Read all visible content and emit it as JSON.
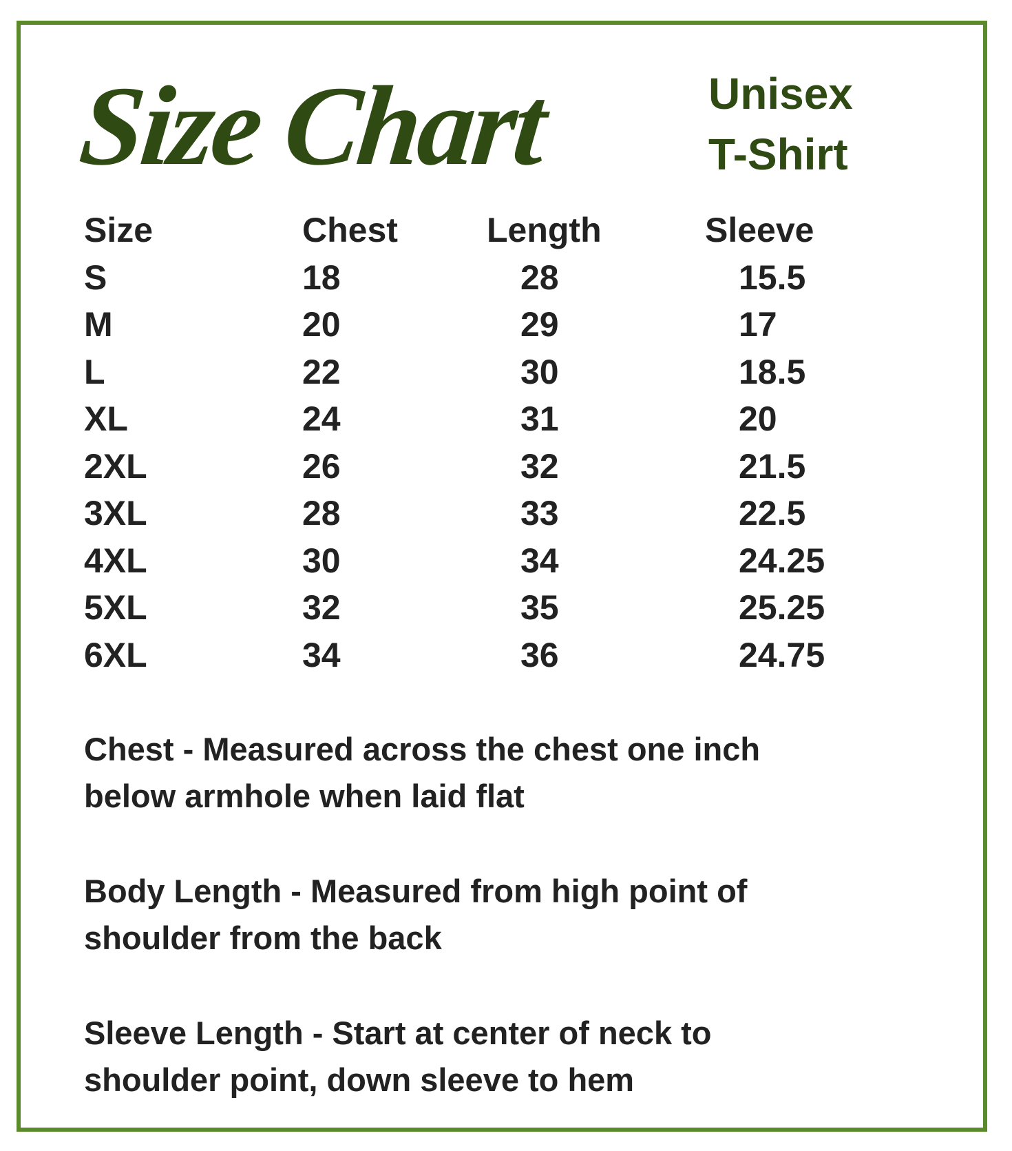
{
  "title": "Size Chart",
  "subtitle": [
    "Unisex",
    "T-Shirt"
  ],
  "colors": {
    "border": "#5b8a2b",
    "title": "#2f4a12",
    "text": "#222222"
  },
  "table": {
    "headers": [
      "Size",
      "Chest",
      "Length",
      "Sleeve"
    ],
    "rows": [
      [
        "S",
        "18",
        "28",
        "15.5"
      ],
      [
        "M",
        "20",
        "29",
        "17"
      ],
      [
        "L",
        "22",
        "30",
        "18.5"
      ],
      [
        "XL",
        "24",
        "31",
        "20"
      ],
      [
        "2XL",
        "26",
        "32",
        "21.5"
      ],
      [
        "3XL",
        "28",
        "33",
        "22.5"
      ],
      [
        "4XL",
        "30",
        "34",
        "24.25"
      ],
      [
        "5XL",
        "32",
        "35",
        "25.25"
      ],
      [
        "6XL",
        "34",
        "36",
        "24.75"
      ]
    ]
  },
  "notes": [
    [
      "Chest - Measured across the chest one inch",
      "below armhole when laid flat"
    ],
    [
      "Body Length - Measured from high point of",
      "shoulder from the back"
    ],
    [
      "Sleeve Length - Start at center of neck to",
      "shoulder point, down sleeve to hem"
    ]
  ]
}
